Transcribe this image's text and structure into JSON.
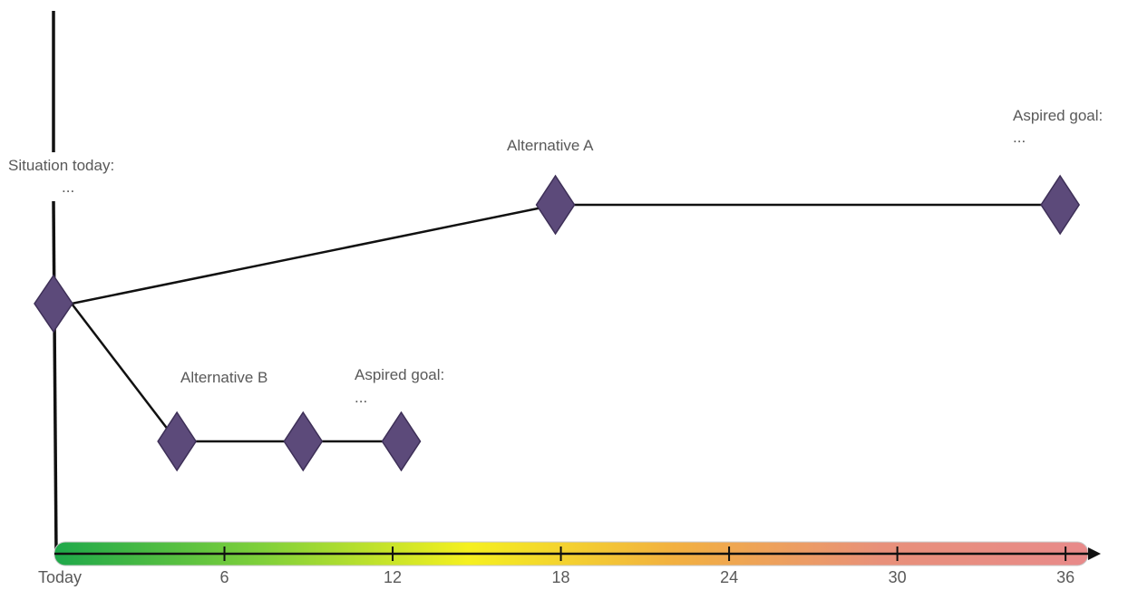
{
  "labels": {
    "situation_today": "Situation today:",
    "situation_today_detail": "...",
    "alternative_a": "Alternative A",
    "aspired_goal_a": "Aspired goal:",
    "aspired_goal_a_detail": "...",
    "alternative_b": "Alternative B",
    "aspired_goal_b": "Aspired goal:",
    "aspired_goal_b_detail": "..."
  },
  "timeline": {
    "ticks": [
      "Today",
      "6",
      "12",
      "18",
      "24",
      "30",
      "36"
    ],
    "gradient_colors": [
      "#1ea84a",
      "#7fd03a",
      "#f5f020",
      "#f2b040",
      "#e8907a",
      "#e88a8a"
    ]
  },
  "milestones": {
    "start": {
      "month": 0
    },
    "alternative_a": [
      18,
      36
    ],
    "alternative_b": [
      4.5,
      9,
      12.5
    ]
  },
  "colors": {
    "milestone_fill": "#5c4a7a",
    "line": "#111111",
    "label_text": "#595959"
  }
}
